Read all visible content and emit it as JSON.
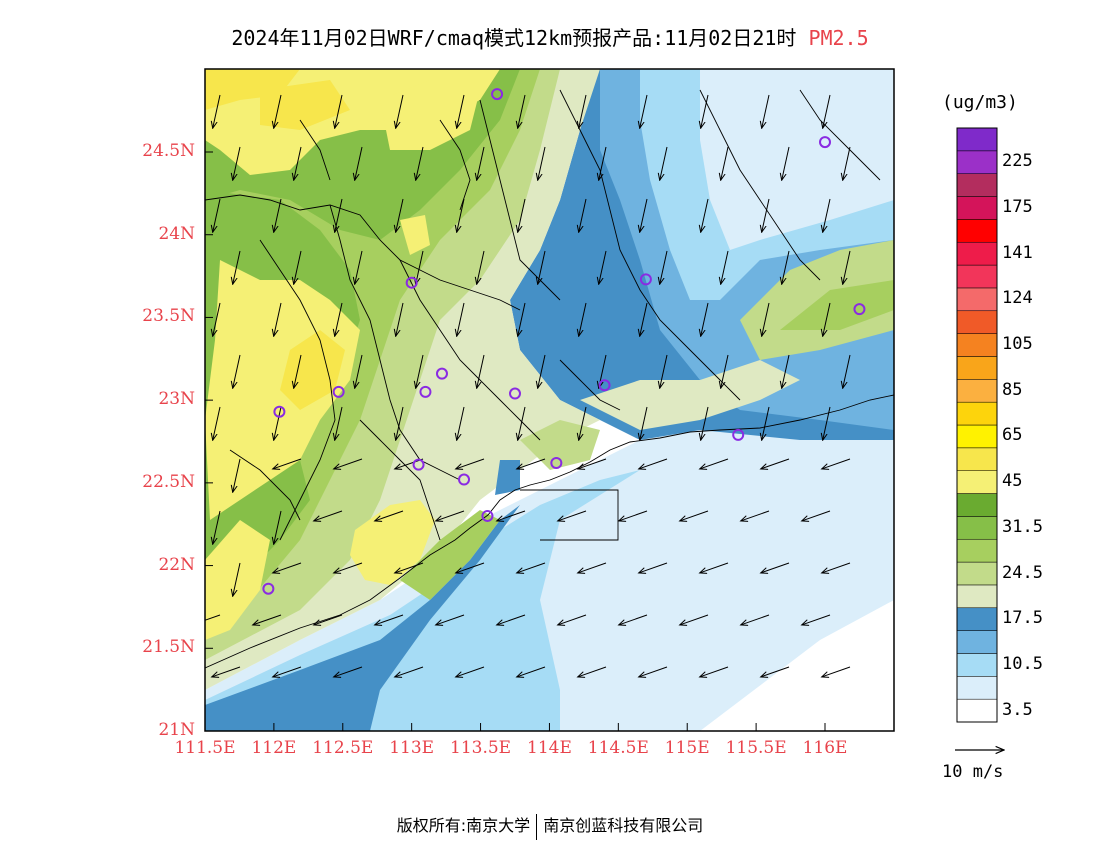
{
  "header": {
    "title": "2024年11月02日WRF/cmaq模式12km预报产品:11月02日21时",
    "variable": "PM2.5"
  },
  "axes": {
    "x_ticks": [
      "111.5E",
      "112E",
      "112.5E",
      "113E",
      "113.5E",
      "114E",
      "114.5E",
      "115E",
      "115.5E",
      "116E"
    ],
    "y_ticks": [
      "21N",
      "21.5N",
      "22N",
      "22.5N",
      "23N",
      "23.5N",
      "24N",
      "24.5N"
    ],
    "lon_range": [
      111.5,
      116.5
    ],
    "lat_range": [
      21.0,
      25.0
    ]
  },
  "legend": {
    "unit": "(ug/m3)",
    "bins": [
      {
        "color": "#ffffff",
        "label": "3.5"
      },
      {
        "color": "#dbeefa",
        "label": ""
      },
      {
        "color": "#a6dcf5",
        "label": "10.5"
      },
      {
        "color": "#6fb3e0",
        "label": ""
      },
      {
        "color": "#4590c6",
        "label": "17.5"
      },
      {
        "color": "#dfe9c2",
        "label": ""
      },
      {
        "color": "#c2db8a",
        "label": "24.5"
      },
      {
        "color": "#a7cf5f",
        "label": ""
      },
      {
        "color": "#86bf48",
        "label": "31.5"
      },
      {
        "color": "#6aab30",
        "label": ""
      },
      {
        "color": "#f5f075",
        "label": "45"
      },
      {
        "color": "#f7e64c",
        "label": ""
      },
      {
        "color": "#fff200",
        "label": "65"
      },
      {
        "color": "#fdd40c",
        "label": ""
      },
      {
        "color": "#fbb040",
        "label": "85"
      },
      {
        "color": "#f9a51a",
        "label": ""
      },
      {
        "color": "#f58220",
        "label": "105"
      },
      {
        "color": "#f05a28",
        "label": ""
      },
      {
        "color": "#f46a6a",
        "label": "124"
      },
      {
        "color": "#f2355a",
        "label": ""
      },
      {
        "color": "#ee1c4a",
        "label": "141"
      },
      {
        "color": "#ff0000",
        "label": ""
      },
      {
        "color": "#d4145a",
        "label": "175"
      },
      {
        "color": "#b32d5e",
        "label": ""
      },
      {
        "color": "#9b30c8",
        "label": "225"
      },
      {
        "color": "#7f2aca",
        "label": ""
      }
    ],
    "ref_vector_label": "10 m/s"
  },
  "stations": [
    {
      "lon": 113.62,
      "lat": 24.85
    },
    {
      "lon": 116.0,
      "lat": 24.56
    },
    {
      "lon": 113.0,
      "lat": 23.71
    },
    {
      "lon": 114.7,
      "lat": 23.73
    },
    {
      "lon": 116.25,
      "lat": 23.55
    },
    {
      "lon": 112.47,
      "lat": 23.05
    },
    {
      "lon": 113.1,
      "lat": 23.05
    },
    {
      "lon": 113.22,
      "lat": 23.16
    },
    {
      "lon": 113.75,
      "lat": 23.04
    },
    {
      "lon": 114.4,
      "lat": 23.09
    },
    {
      "lon": 112.04,
      "lat": 22.93
    },
    {
      "lon": 115.37,
      "lat": 22.79
    },
    {
      "lon": 113.05,
      "lat": 22.61
    },
    {
      "lon": 114.05,
      "lat": 22.62
    },
    {
      "lon": 113.38,
      "lat": 22.52
    },
    {
      "lon": 113.55,
      "lat": 22.3
    },
    {
      "lon": 111.96,
      "lat": 21.86
    }
  ],
  "footer": {
    "rights": "版权所有:南京大学",
    "company": "南京创蓝科技有限公司"
  }
}
